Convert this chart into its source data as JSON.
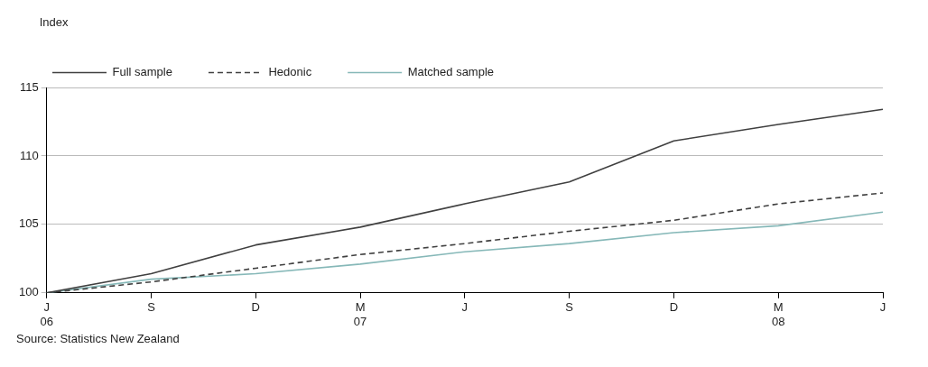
{
  "chart_data": {
    "type": "line",
    "ylabel": "Index",
    "annotations": [
      "Source: Statistics New Zealand"
    ],
    "categories": [
      "J\n06",
      "S",
      "D",
      "M\n07",
      "J",
      "S",
      "D",
      "M\n08",
      "J"
    ],
    "series": [
      {
        "name": "Full sample",
        "color": "#404040",
        "line_style": "solid",
        "values": [
          100,
          101.4,
          103.5,
          104.8,
          106.5,
          108.1,
          111.1,
          112.3,
          113.4
        ]
      },
      {
        "name": "Hedonic",
        "color": "#404040",
        "line_style": "dashed",
        "values": [
          100,
          100.8,
          101.8,
          102.8,
          103.6,
          104.5,
          105.3,
          106.5,
          107.3
        ]
      },
      {
        "name": "Matched sample",
        "color": "#86b8b8",
        "line_style": "solid",
        "values": [
          100,
          101,
          101.4,
          102.1,
          103,
          103.6,
          104.4,
          104.9,
          105.9
        ]
      }
    ],
    "ylim": [
      100,
      115
    ],
    "yticks": [
      100,
      105,
      110,
      115
    ],
    "grid": "y",
    "legend": "top left",
    "marker": "none"
  }
}
